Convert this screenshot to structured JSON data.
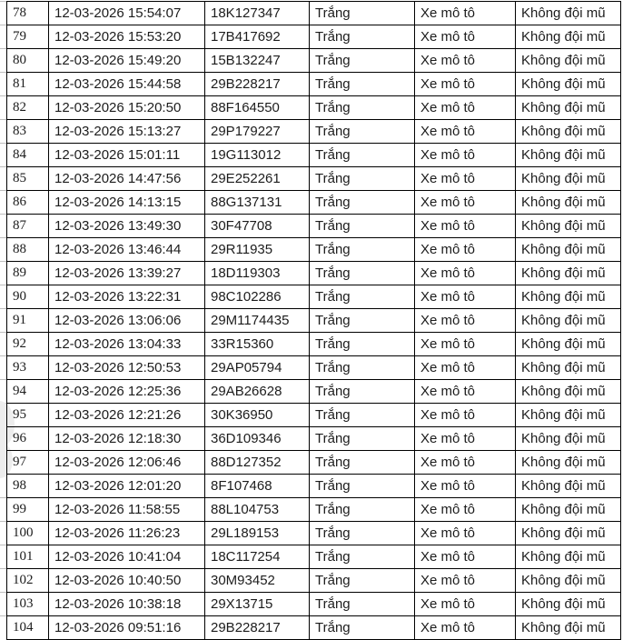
{
  "theme": {
    "background_color": "#ffffff",
    "table_border_color": "#000000",
    "text_color": "#1c1c1c",
    "margin_gridline_color": "#bdbdbd"
  },
  "table": {
    "rows": [
      {
        "no": "78",
        "datetime": "12-03-2026 15:54:07",
        "plate": "18K127347",
        "color": "Trắng",
        "vehicle_type": "Xe mô tô",
        "violation": "Không đội mũ"
      },
      {
        "no": "79",
        "datetime": "12-03-2026 15:53:20",
        "plate": "17B417692",
        "color": "Trắng",
        "vehicle_type": "Xe mô tô",
        "violation": "Không đội mũ"
      },
      {
        "no": "80",
        "datetime": "12-03-2026 15:49:20",
        "plate": "15B132247",
        "color": "Trắng",
        "vehicle_type": "Xe mô tô",
        "violation": "Không đội mũ"
      },
      {
        "no": "81",
        "datetime": "12-03-2026 15:44:58",
        "plate": "29B228217",
        "color": "Trắng",
        "vehicle_type": "Xe mô tô",
        "violation": "Không đội mũ"
      },
      {
        "no": "82",
        "datetime": "12-03-2026 15:20:50",
        "plate": "88F164550",
        "color": "Trắng",
        "vehicle_type": "Xe mô tô",
        "violation": "Không đội mũ"
      },
      {
        "no": "83",
        "datetime": "12-03-2026 15:13:27",
        "plate": "29P179227",
        "color": "Trắng",
        "vehicle_type": "Xe mô tô",
        "violation": "Không đội mũ"
      },
      {
        "no": "84",
        "datetime": "12-03-2026 15:01:11",
        "plate": "19G113012",
        "color": "Trắng",
        "vehicle_type": "Xe mô tô",
        "violation": "Không đội mũ"
      },
      {
        "no": "85",
        "datetime": "12-03-2026 14:47:56",
        "plate": "29E252261",
        "color": "Trắng",
        "vehicle_type": "Xe mô tô",
        "violation": "Không đội mũ"
      },
      {
        "no": "86",
        "datetime": "12-03-2026 14:13:15",
        "plate": "88G137131",
        "color": "Trắng",
        "vehicle_type": "Xe mô tô",
        "violation": "Không đội mũ"
      },
      {
        "no": "87",
        "datetime": "12-03-2026 13:49:30",
        "plate": "30F47708",
        "color": "Trắng",
        "vehicle_type": "Xe mô tô",
        "violation": "Không đội mũ"
      },
      {
        "no": "88",
        "datetime": "12-03-2026 13:46:44",
        "plate": "29R11935",
        "color": "Trắng",
        "vehicle_type": "Xe mô tô",
        "violation": "Không đội mũ"
      },
      {
        "no": "89",
        "datetime": "12-03-2026 13:39:27",
        "plate": "18D119303",
        "color": "Trắng",
        "vehicle_type": "Xe mô tô",
        "violation": "Không đội mũ"
      },
      {
        "no": "90",
        "datetime": "12-03-2026 13:22:31",
        "plate": "98C102286",
        "color": "Trắng",
        "vehicle_type": "Xe mô tô",
        "violation": "Không đội mũ"
      },
      {
        "no": "91",
        "datetime": "12-03-2026 13:06:06",
        "plate": "29M1174435",
        "color": "Trắng",
        "vehicle_type": "Xe mô tô",
        "violation": "Không đội mũ"
      },
      {
        "no": "92",
        "datetime": "12-03-2026 13:04:33",
        "plate": "33R15360",
        "color": "Trắng",
        "vehicle_type": "Xe mô tô",
        "violation": "Không đội mũ"
      },
      {
        "no": "93",
        "datetime": "12-03-2026 12:50:53",
        "plate": "29AP05794",
        "color": "Trắng",
        "vehicle_type": "Xe mô tô",
        "violation": "Không đội mũ"
      },
      {
        "no": "94",
        "datetime": "12-03-2026 12:25:36",
        "plate": "29AB26628",
        "color": "Trắng",
        "vehicle_type": "Xe mô tô",
        "violation": "Không đội mũ"
      },
      {
        "no": "95",
        "datetime": "12-03-2026 12:21:26",
        "plate": "30K36950",
        "color": "Trắng",
        "vehicle_type": "Xe mô tô",
        "violation": "Không đội mũ"
      },
      {
        "no": "96",
        "datetime": "12-03-2026 12:18:30",
        "plate": "36D109346",
        "color": "Trắng",
        "vehicle_type": "Xe mô tô",
        "violation": "Không đội mũ"
      },
      {
        "no": "97",
        "datetime": "12-03-2026 12:06:46",
        "plate": "88D127352",
        "color": "Trắng",
        "vehicle_type": "Xe mô tô",
        "violation": "Không đội mũ"
      },
      {
        "no": "98",
        "datetime": "12-03-2026 12:01:20",
        "plate": "8F107468",
        "color": "Trắng",
        "vehicle_type": "Xe mô tô",
        "violation": "Không đội mũ"
      },
      {
        "no": "99",
        "datetime": "12-03-2026 11:58:55",
        "plate": "88L104753",
        "color": "Trắng",
        "vehicle_type": "Xe mô tô",
        "violation": "Không đội mũ"
      },
      {
        "no": "100",
        "datetime": "12-03-2026 11:26:23",
        "plate": "29L189153",
        "color": "Trắng",
        "vehicle_type": "Xe mô tô",
        "violation": "Không đội mũ"
      },
      {
        "no": "101",
        "datetime": "12-03-2026 10:41:04",
        "plate": "18C117254",
        "color": "Trắng",
        "vehicle_type": "Xe mô tô",
        "violation": "Không đội mũ"
      },
      {
        "no": "102",
        "datetime": "12-03-2026 10:40:50",
        "plate": "30M93452",
        "color": "Trắng",
        "vehicle_type": "Xe mô tô",
        "violation": "Không đội mũ"
      },
      {
        "no": "103",
        "datetime": "12-03-2026 10:38:18",
        "plate": "29X13715",
        "color": "Trắng",
        "vehicle_type": "Xe mô tô",
        "violation": "Không đội mũ"
      },
      {
        "no": "104",
        "datetime": "12-03-2026 09:51:16",
        "plate": "29B228217",
        "color": "Trắng",
        "vehicle_type": "Xe mô tô",
        "violation": "Không đội mũ"
      }
    ]
  }
}
